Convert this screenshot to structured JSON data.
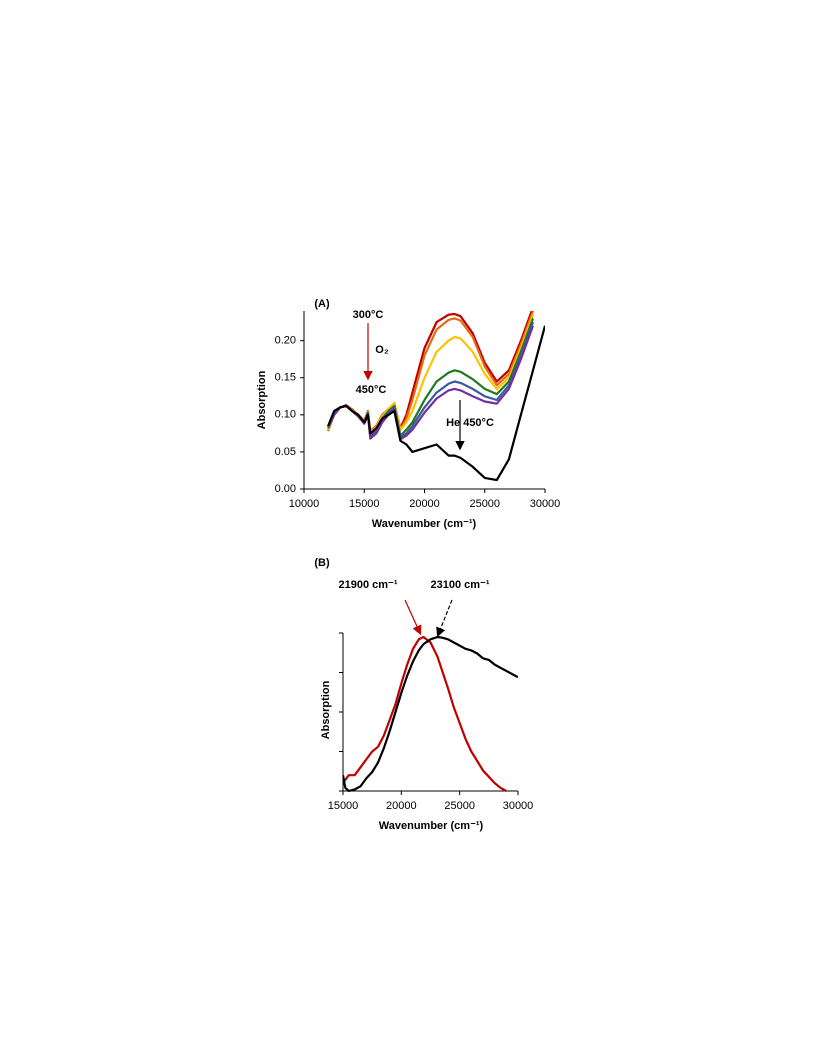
{
  "chart_data": [
    {
      "type": "line",
      "label": "(A)",
      "y_label": "Absorption",
      "x_label": "Wavenumber (cm⁻¹)",
      "xlim": [
        10000,
        30000
      ],
      "xticks": [
        10000,
        15000,
        20000,
        25000,
        30000
      ],
      "ylim": [
        0,
        0.24
      ],
      "yticks": [
        {
          "value": 0,
          "label": "0.00"
        },
        {
          "value": 0.05,
          "label": "0.05"
        },
        {
          "value": 0.1,
          "label": "0.10"
        },
        {
          "value": 0.15,
          "label": "0.15"
        },
        {
          "value": 0.2,
          "label": "0.20"
        }
      ],
      "x": [
        12000,
        12500,
        13000,
        13500,
        14000,
        14500,
        15000,
        15300,
        15500,
        16000,
        16500,
        17000,
        17500,
        18000,
        18500,
        19000,
        20000,
        21000,
        22000,
        22500,
        23000,
        24000,
        25000,
        26000,
        27000,
        28000,
        29000,
        30000
      ],
      "series": [
        {
          "color": "#c00000",
          "values": [
            0.08,
            0.1,
            0.11,
            0.113,
            0.107,
            0.1,
            0.092,
            0.105,
            0.078,
            0.085,
            0.1,
            0.108,
            0.115,
            0.082,
            0.1,
            0.13,
            0.19,
            0.225,
            0.235,
            0.236,
            0.233,
            0.21,
            0.17,
            0.145,
            0.16,
            0.2,
            0.245,
            null
          ]
        },
        {
          "color": "#e86a10",
          "values": [
            0.078,
            0.1,
            0.11,
            0.112,
            0.106,
            0.1,
            0.091,
            0.104,
            0.077,
            0.084,
            0.099,
            0.108,
            0.116,
            0.08,
            0.095,
            0.12,
            0.18,
            0.215,
            0.228,
            0.23,
            0.227,
            0.205,
            0.165,
            0.14,
            0.155,
            0.195,
            0.24,
            null
          ]
        },
        {
          "color": "#ffc000",
          "values": [
            0.08,
            0.1,
            0.11,
            0.112,
            0.106,
            0.1,
            0.091,
            0.104,
            0.077,
            0.084,
            0.099,
            0.108,
            0.116,
            0.08,
            0.09,
            0.105,
            0.15,
            0.185,
            0.2,
            0.205,
            0.203,
            0.185,
            0.155,
            0.135,
            0.15,
            0.19,
            0.235,
            null
          ]
        },
        {
          "color": "#1f7a1f",
          "values": [
            0.082,
            0.1,
            0.11,
            0.112,
            0.105,
            0.099,
            0.09,
            0.103,
            0.074,
            0.08,
            0.095,
            0.105,
            0.112,
            0.072,
            0.08,
            0.09,
            0.12,
            0.145,
            0.157,
            0.16,
            0.158,
            0.148,
            0.135,
            0.128,
            0.145,
            0.185,
            0.23,
            null
          ]
        },
        {
          "color": "#3a5a9a",
          "values": [
            0.083,
            0.1,
            0.11,
            0.112,
            0.105,
            0.098,
            0.089,
            0.102,
            0.071,
            0.078,
            0.093,
            0.103,
            0.11,
            0.07,
            0.075,
            0.085,
            0.11,
            0.13,
            0.142,
            0.145,
            0.143,
            0.135,
            0.125,
            0.12,
            0.14,
            0.18,
            0.225,
            null
          ]
        },
        {
          "color": "#7030a0",
          "values": [
            0.085,
            0.1,
            0.11,
            0.112,
            0.105,
            0.098,
            0.088,
            0.1,
            0.068,
            0.075,
            0.09,
            0.1,
            0.107,
            0.067,
            0.072,
            0.08,
            0.103,
            0.122,
            0.133,
            0.135,
            0.133,
            0.125,
            0.118,
            0.115,
            0.135,
            0.175,
            0.22,
            null
          ]
        },
        {
          "color": "#000000",
          "values": [
            0.085,
            0.105,
            0.11,
            0.112,
            0.105,
            0.1,
            0.09,
            0.1,
            0.075,
            0.082,
            0.095,
            0.1,
            0.105,
            0.065,
            0.06,
            0.05,
            0.055,
            0.06,
            0.045,
            0.045,
            0.042,
            0.03,
            0.015,
            0.012,
            0.04,
            0.1,
            0.16,
            0.22
          ]
        }
      ],
      "annotations": [
        {
          "text": "300°C",
          "color": "#c00000"
        },
        {
          "text": "O₂",
          "color": "#c00000"
        },
        {
          "text": "450°C",
          "color": "#7030a0"
        },
        {
          "text": "He 450°C",
          "color": "#000000"
        }
      ]
    },
    {
      "type": "line",
      "label": "(B)",
      "y_label": "Absorption",
      "x_label": "Wavenumber (cm⁻¹)",
      "xlim": [
        15000,
        30000
      ],
      "xticks": [
        15000,
        20000,
        25000,
        30000
      ],
      "ylim": [
        0,
        1
      ],
      "yticks": [
        0,
        0.25,
        0.5,
        0.75,
        1
      ],
      "ytick_labels": false,
      "x": [
        15000,
        15200,
        15500,
        16000,
        16500,
        17000,
        17500,
        18000,
        18500,
        19000,
        19500,
        20000,
        20500,
        21000,
        21500,
        21900,
        22500,
        23100,
        23500,
        24000,
        24500,
        25000,
        25500,
        26000,
        26500,
        27000,
        27500,
        28000,
        28500,
        29000,
        29500,
        30000
      ],
      "series": [
        {
          "color": "#c00000",
          "values": [
            0.05,
            0.07,
            0.1,
            0.1,
            0.15,
            0.2,
            0.25,
            0.28,
            0.35,
            0.45,
            0.55,
            0.68,
            0.8,
            0.9,
            0.96,
            0.975,
            0.94,
            0.85,
            0.76,
            0.65,
            0.53,
            0.43,
            0.33,
            0.25,
            0.19,
            0.13,
            0.09,
            0.05,
            0.02,
            0.0,
            null,
            null
          ]
        },
        {
          "color": "#000000",
          "values": [
            0.1,
            0.02,
            0.0,
            0.01,
            0.03,
            0.08,
            0.12,
            0.18,
            0.27,
            0.38,
            0.5,
            0.62,
            0.73,
            0.82,
            0.89,
            0.93,
            0.96,
            0.975,
            0.97,
            0.96,
            0.94,
            0.92,
            0.9,
            0.89,
            0.87,
            0.84,
            0.83,
            0.8,
            0.78,
            0.76,
            0.74,
            0.72
          ]
        }
      ],
      "annotations": [
        {
          "text": "21900 cm⁻¹",
          "color": "#c00000"
        },
        {
          "text": "23100 cm⁻¹",
          "color": "#000000"
        }
      ]
    }
  ]
}
